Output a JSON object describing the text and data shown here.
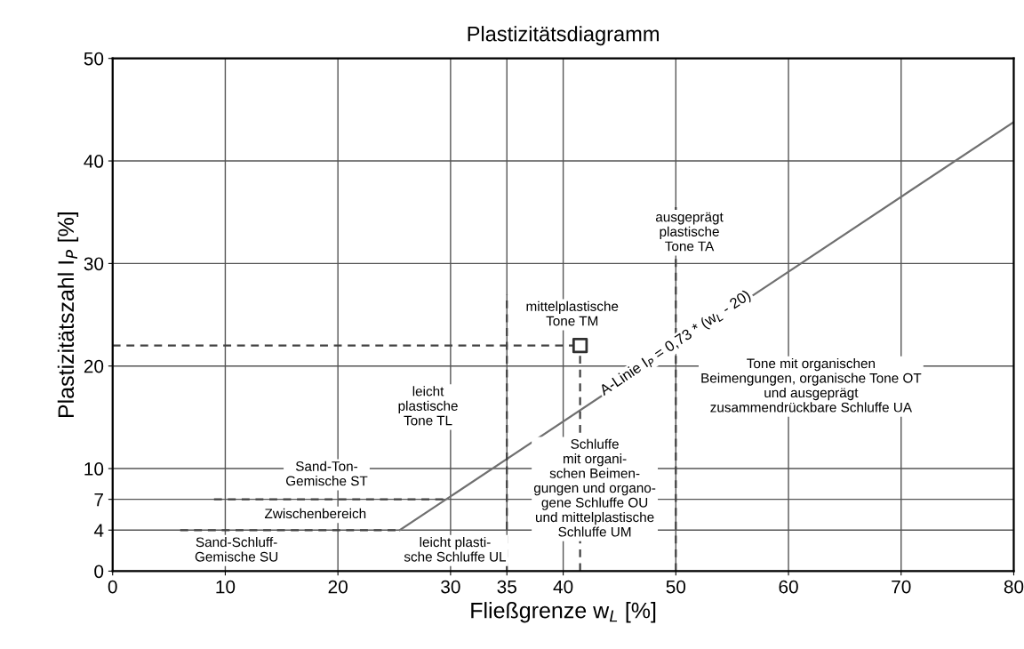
{
  "chart_data": {
    "type": "line",
    "title": "Plastizitätsdiagramm",
    "xlabel": "Fließgrenze w$_{L}$ [%]",
    "ylabel": "Plastizitätszahl I$_{P}$ [%]",
    "xlim": [
      0,
      80
    ],
    "ylim": [
      0,
      50
    ],
    "xticks": [
      0,
      10,
      20,
      30,
      35,
      40,
      50,
      60,
      70,
      80
    ],
    "yticks": [
      0,
      4,
      7,
      10,
      20,
      30,
      40,
      50
    ],
    "grid": true,
    "series": [
      {
        "color": "#707070",
        "x": [
          25.5,
          80
        ],
        "values": [
          4,
          43.8
        ],
        "line_style": "solid"
      },
      {
        "color": "#404040",
        "x": [
          9,
          29.6
        ],
        "values": [
          7,
          7
        ],
        "line_style": "dashed"
      },
      {
        "color": "#404040",
        "x": [
          6,
          25.5
        ],
        "values": [
          4,
          4
        ],
        "line_style": "dashed"
      },
      {
        "color": "#404040",
        "x": [
          35,
          35
        ],
        "values": [
          0,
          27
        ],
        "line_style": "dashed"
      },
      {
        "color": "#404040",
        "x": [
          50,
          50
        ],
        "values": [
          0,
          35.5
        ],
        "line_style": "dashed"
      },
      {
        "color": "#404040",
        "x": [
          0,
          41.5
        ],
        "values": [
          22,
          22
        ],
        "line_style": "dashed"
      },
      {
        "color": "#404040",
        "x": [
          41.5,
          41.5
        ],
        "values": [
          0,
          22
        ],
        "line_style": "dashed"
      },
      {
        "type": "scatter",
        "color": "#303030",
        "x": [
          41.5
        ],
        "values": [
          22
        ],
        "marker": "square"
      }
    ],
    "annotations": [
      {
        "text": "A-Linie I$_{P}$ = 0,73 * (w$_{L}$ - 20)",
        "x": 50,
        "y": 22.2
      },
      "ausgeprägt\nplastische\nTone TA",
      "mittelplastische\nTone TM",
      "leicht\nplastische\nTone TL",
      "Tone mit organischen\nBeimengungen, organische Tone OT\nund ausgeprägt\nzusammendrückbare Schluffe UA",
      "Schluffe\nmit organi-\nschen Beimen-\ngungen und organo-\ngene Schluffe OU\nund mittelplastische\nSchluffe UM",
      "Sand-Ton-\nGemische ST",
      "Zwischenbereich",
      "Sand-Schluff-\nGemische SU",
      "leicht plasti-\nsche Schluffe UL"
    ]
  }
}
